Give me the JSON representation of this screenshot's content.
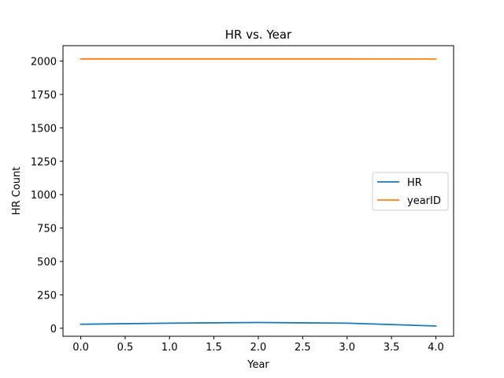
{
  "chart_data": {
    "type": "line",
    "title": "HR vs. Year",
    "xlabel": "Year",
    "ylabel": "HR Count",
    "x": [
      0,
      1,
      2,
      3,
      4
    ],
    "series": [
      {
        "name": "HR",
        "values": [
          30,
          38,
          43,
          38,
          17
        ],
        "color": "#1f77b4"
      },
      {
        "name": "yearID",
        "values": [
          2016,
          2016,
          2016,
          2016,
          2015
        ],
        "color": "#ff7f0e"
      }
    ],
    "xlim": [
      -0.2,
      4.2
    ],
    "ylim": [
      -60,
      2115
    ],
    "xticks": [
      0.0,
      0.5,
      1.0,
      1.5,
      2.0,
      2.5,
      3.0,
      3.5,
      4.0
    ],
    "xtick_labels": [
      "0.0",
      "0.5",
      "1.0",
      "1.5",
      "2.0",
      "2.5",
      "3.0",
      "3.5",
      "4.0"
    ],
    "yticks": [
      0,
      250,
      500,
      750,
      1000,
      1250,
      1500,
      1750,
      2000
    ],
    "ytick_labels": [
      "0",
      "250",
      "500",
      "750",
      "1000",
      "1250",
      "1500",
      "1750",
      "2000"
    ],
    "grid": false,
    "legend_position": "center-right"
  }
}
